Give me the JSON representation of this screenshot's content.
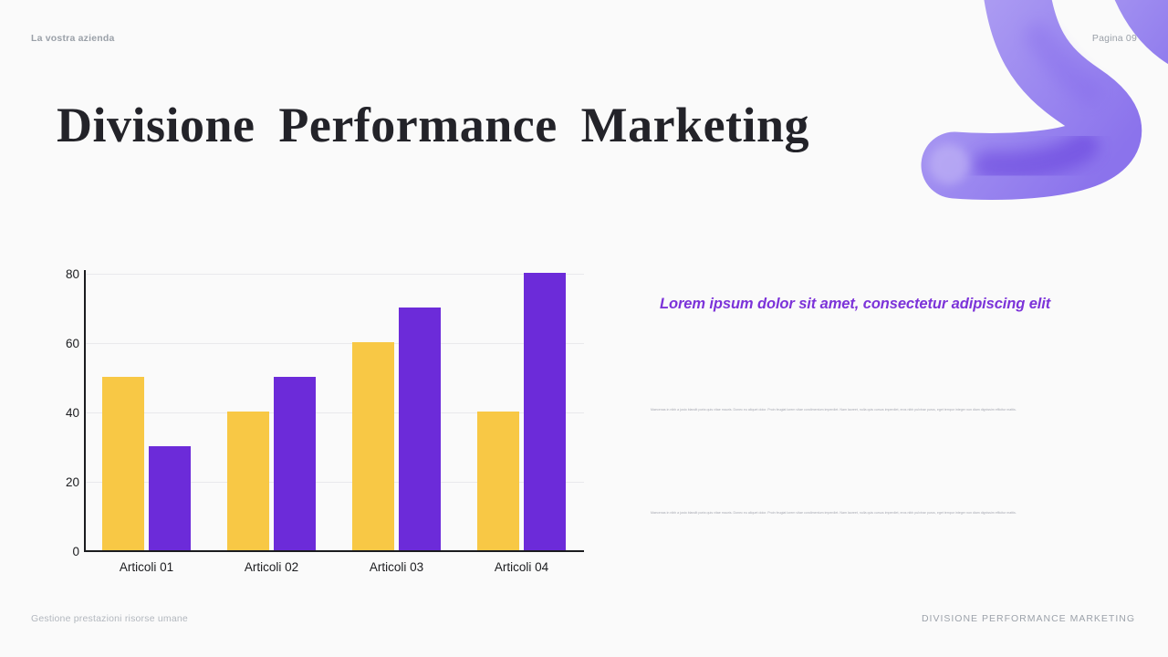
{
  "page": {
    "header_left": "La vostra azienda",
    "header_right": "Pagina 09",
    "title": "Divisione Performance Marketing",
    "footer_left": "Gestione prestazioni risorse umane",
    "footer_right": "DIVISIONE PERFORMANCE MARKETING"
  },
  "content": {
    "heading": "Lorem ipsum dolor sit amet, consectetur adipiscing elit",
    "paragraphs": [
      "Maecenas in nibh a justo blandit porta quis vitae mauris. Donec eu aliquet dolor. Proin feugiat lorem vitae condimentum imperdiet. Nam laoreet, nulla quis cursus imperdiet, eros nibh pulvinar purus, eget tempor integer non diam dignissim efficitur mattis.",
      "Maecenas in nibh a justo blandit porta quis vitae mauris. Donec eu aliquet dolor. Proin feugiat lorem vitae condimentum imperdiet. Nam laoreet, nulla quis cursus imperdiet, eros nibh pulvinar purus, eget tempor integer non diam dignissim efficitur mattis."
    ]
  },
  "chart_data": {
    "type": "bar",
    "categories": [
      "Articoli 01",
      "Articoli 02",
      "Articoli 03",
      "Articoli 04"
    ],
    "series": [
      {
        "name": "series-yellow",
        "color": "#F8C845",
        "values": [
          50,
          40,
          60,
          40
        ]
      },
      {
        "name": "series-purple",
        "color": "#6C2BD9",
        "values": [
          30,
          50,
          70,
          80
        ]
      }
    ],
    "title": "",
    "xlabel": "",
    "ylabel": "",
    "ylim": [
      0,
      80
    ],
    "yticks": [
      0,
      20,
      40,
      60,
      80
    ],
    "grid": true,
    "legend_position": "none"
  },
  "colors": {
    "accent_purple": "#7C33D9",
    "bar_yellow": "#F8C845",
    "bar_purple": "#6C2BD9",
    "squiggle_light": "#B3A4F3",
    "squiggle_dark": "#8B73EC",
    "background": "#FAFAFA"
  }
}
